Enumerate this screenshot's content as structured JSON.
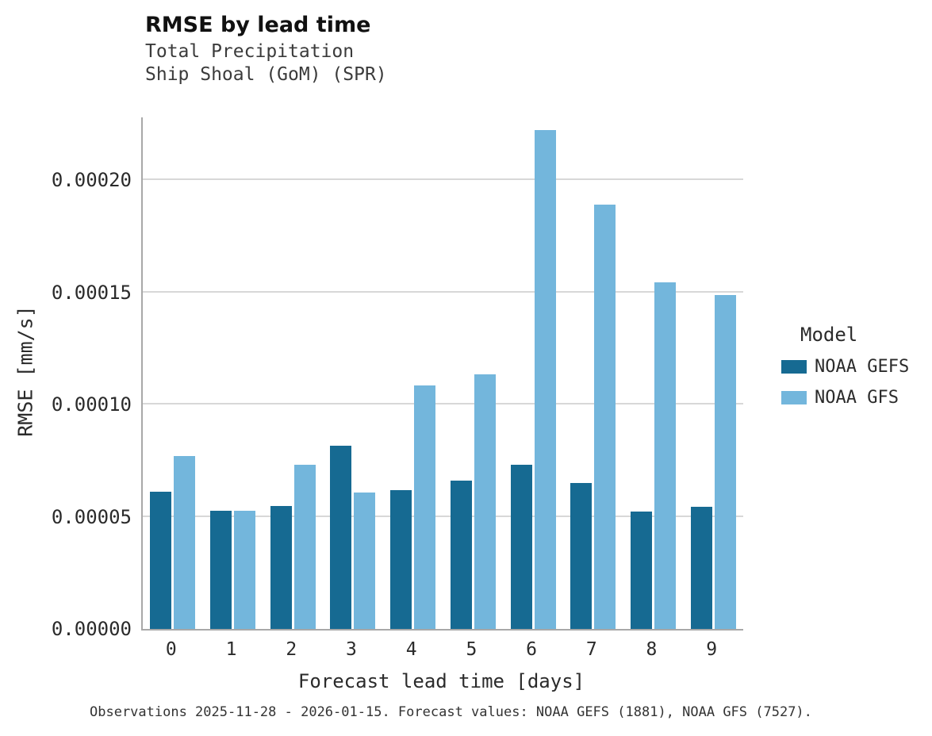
{
  "header": {
    "title": "RMSE by lead time",
    "subtitle_line1": "Total Precipitation",
    "subtitle_line2": "Ship Shoal (GoM) (SPR)"
  },
  "chart_data": {
    "type": "bar",
    "title": "RMSE by lead time",
    "subtitle": [
      "Total Precipitation",
      "Ship Shoal (GoM) (SPR)"
    ],
    "xlabel": "Forecast lead time [days]",
    "ylabel": "RMSE [mm/s]",
    "categories": [
      "0",
      "1",
      "2",
      "3",
      "4",
      "5",
      "6",
      "7",
      "8",
      "9"
    ],
    "series": [
      {
        "name": "NOAA GEFS",
        "color": "#166a92",
        "values": [
          6.12e-05,
          5.28e-05,
          5.47e-05,
          8.18e-05,
          6.17e-05,
          6.62e-05,
          7.33e-05,
          6.52e-05,
          5.22e-05,
          5.45e-05
        ]
      },
      {
        "name": "NOAA GFS",
        "color": "#73b6dc",
        "values": [
          7.7e-05,
          5.28e-05,
          7.32e-05,
          6.07e-05,
          0.0001085,
          0.0001135,
          0.0002225,
          0.000189,
          0.0001545,
          0.000149
        ]
      }
    ],
    "ylim": [
      0,
      0.000228
    ],
    "yticks": [
      0,
      5e-05,
      0.0001,
      0.00015,
      0.0002
    ],
    "ytick_labels": [
      "0.00000",
      "0.00005",
      "0.00010",
      "0.00015",
      "0.00020"
    ],
    "grid": "horizontal",
    "legend": {
      "title": "Model",
      "position": "right"
    }
  },
  "caption": "Observations 2025-11-28 - 2026-01-15. Forecast values: NOAA GEFS (1881), NOAA GFS (7527)."
}
